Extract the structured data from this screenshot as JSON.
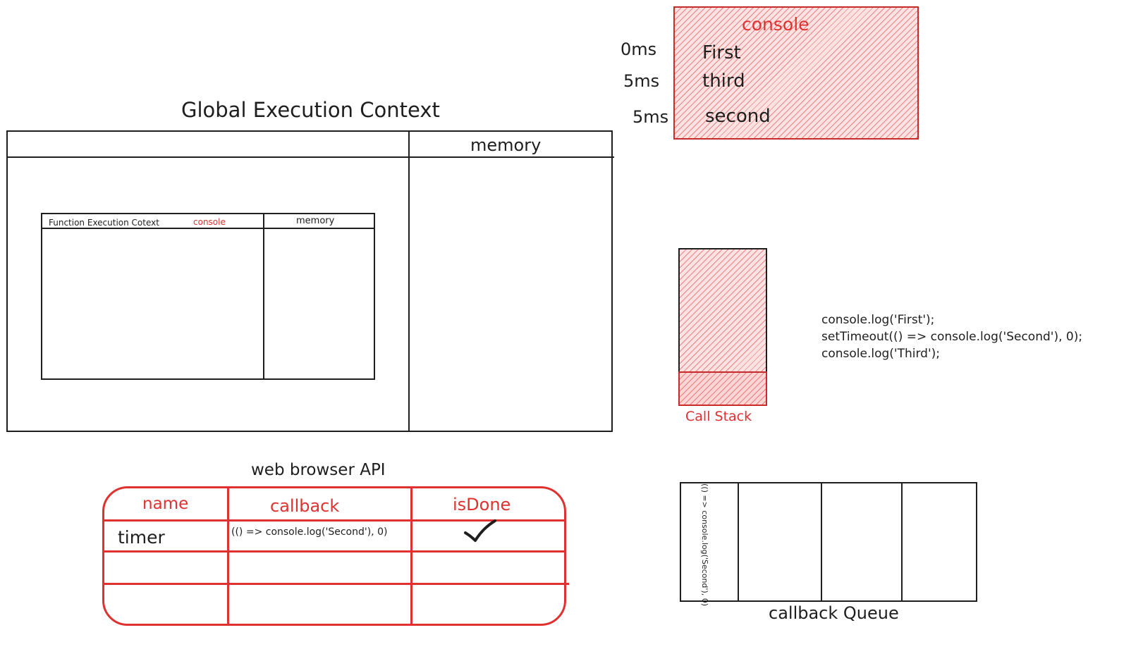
{
  "console_panel": {
    "title": "console",
    "entries": [
      {
        "time": "0ms",
        "text": "First"
      },
      {
        "time": "5ms",
        "text": "third"
      },
      {
        "time": "5ms",
        "text": "second"
      }
    ]
  },
  "global_context": {
    "title": "Global Execution Context",
    "memory_label": "memory",
    "function_context": {
      "title": "Function Execution Cotext",
      "console_label": "console",
      "memory_label": "memory"
    }
  },
  "call_stack": {
    "label": "Call Stack"
  },
  "code": {
    "lines": [
      "console.log('First');",
      "setTimeout(() => console.log('Second'), 0);",
      "console.log('Third');"
    ]
  },
  "web_api": {
    "title": "web browser API",
    "headers": [
      "name",
      "callback",
      "isDone"
    ],
    "rows": [
      {
        "name": "timer",
        "callback": "(() => console.log('Second'), 0)",
        "done_icon": "checkmark-icon"
      }
    ]
  },
  "callback_queue": {
    "label": "callback Queue",
    "first_item": "(() => console.log('Second'), 0)"
  },
  "colors": {
    "accent": "#e03131",
    "stroke": "#1e1e1e",
    "hatch_fill": "#ffe3e3"
  }
}
